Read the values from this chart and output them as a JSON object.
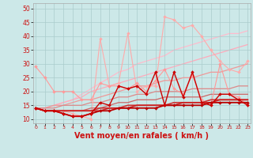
{
  "x": [
    0,
    1,
    2,
    3,
    4,
    5,
    6,
    7,
    8,
    9,
    10,
    11,
    12,
    13,
    14,
    15,
    16,
    17,
    18,
    19,
    20,
    21,
    22,
    23
  ],
  "background_color": "#cce8e8",
  "grid_color": "#aacccc",
  "xlabel": "Vent moyen/en rafales ( km/h )",
  "xlabel_color": "#cc1111",
  "xlabel_fontsize": 7,
  "ytick_labels": [
    "10",
    "15",
    "20",
    "25",
    "30",
    "35",
    "40",
    "45",
    "50"
  ],
  "yticks": [
    10,
    15,
    20,
    25,
    30,
    35,
    40,
    45,
    50
  ],
  "ylim": [
    8.5,
    52
  ],
  "xlim": [
    -0.3,
    23.3
  ],
  "series": [
    {
      "y": [
        14,
        14,
        15,
        16,
        17,
        19,
        21,
        23,
        25,
        27,
        28,
        30,
        31,
        32,
        33,
        35,
        36,
        37,
        38,
        39,
        40,
        41,
        41,
        42
      ],
      "color": "#ffbbcc",
      "lw": 0.9,
      "marker": null,
      "zorder": 1
    },
    {
      "y": [
        14,
        14,
        15,
        16,
        17,
        18,
        20,
        21,
        22,
        23,
        24,
        25,
        26,
        27,
        28,
        29,
        30,
        31,
        32,
        33,
        34,
        35,
        36,
        37
      ],
      "color": "#ffaabb",
      "lw": 0.9,
      "marker": null,
      "zorder": 1
    },
    {
      "y": [
        14,
        14,
        15,
        15,
        16,
        17,
        17,
        18,
        19,
        20,
        21,
        22,
        22,
        23,
        24,
        24,
        25,
        25,
        26,
        27,
        27,
        28,
        29,
        30
      ],
      "color": "#ee9999",
      "lw": 0.9,
      "marker": null,
      "zorder": 2
    },
    {
      "y": [
        14,
        14,
        14,
        15,
        15,
        15,
        16,
        16,
        17,
        18,
        18,
        19,
        19,
        20,
        20,
        20,
        20,
        21,
        21,
        21,
        21,
        21,
        22,
        22
      ],
      "color": "#dd8888",
      "lw": 0.9,
      "marker": null,
      "zorder": 2
    },
    {
      "y": [
        14,
        13,
        13,
        13,
        13,
        13,
        14,
        14,
        15,
        16,
        16,
        17,
        17,
        17,
        18,
        18,
        18,
        18,
        18,
        19,
        19,
        19,
        19,
        19
      ],
      "color": "#cc6666",
      "lw": 0.9,
      "marker": null,
      "zorder": 3
    },
    {
      "y": [
        14,
        13,
        13,
        13,
        13,
        13,
        13,
        14,
        14,
        14,
        15,
        15,
        15,
        15,
        15,
        16,
        16,
        16,
        16,
        17,
        17,
        17,
        17,
        17
      ],
      "color": "#cc3333",
      "lw": 1.2,
      "marker": null,
      "zorder": 4
    },
    {
      "y": [
        14,
        13,
        13,
        13,
        13,
        13,
        13,
        13,
        14,
        14,
        14,
        15,
        15,
        15,
        15,
        15,
        16,
        16,
        16,
        16,
        17,
        17,
        17,
        17
      ],
      "color": "#cc2222",
      "lw": 1.2,
      "marker": null,
      "zorder": 4
    },
    {
      "y": [
        29,
        25,
        20,
        20,
        20,
        17,
        17,
        23,
        22,
        22,
        21,
        23,
        20,
        24,
        28,
        21,
        19,
        26,
        17,
        15,
        30,
        19,
        18,
        15
      ],
      "color": "#ff9999",
      "lw": 0.8,
      "marker": "D",
      "ms": 2.0,
      "zorder": 3
    },
    {
      "y": [
        14,
        13,
        13,
        13,
        12,
        11,
        10,
        39,
        22,
        23,
        41,
        20,
        22,
        22,
        47,
        46,
        43,
        44,
        40,
        35,
        31,
        28,
        27,
        31
      ],
      "color": "#ffaaaa",
      "lw": 0.8,
      "marker": "D",
      "ms": 2.0,
      "zorder": 2
    },
    {
      "y": [
        14,
        13,
        13,
        12,
        11,
        11,
        12,
        13,
        13,
        14,
        14,
        14,
        14,
        14,
        15,
        15,
        15,
        15,
        15,
        16,
        16,
        16,
        16,
        16
      ],
      "color": "#bb0000",
      "lw": 1.3,
      "marker": "D",
      "ms": 2.0,
      "zorder": 5
    },
    {
      "y": [
        14,
        13,
        13,
        12,
        11,
        11,
        12,
        16,
        15,
        22,
        21,
        22,
        19,
        27,
        15,
        27,
        18,
        27,
        16,
        15,
        19,
        19,
        17,
        15
      ],
      "color": "#cc0000",
      "lw": 1.0,
      "marker": "D",
      "ms": 2.0,
      "zorder": 5
    }
  ]
}
